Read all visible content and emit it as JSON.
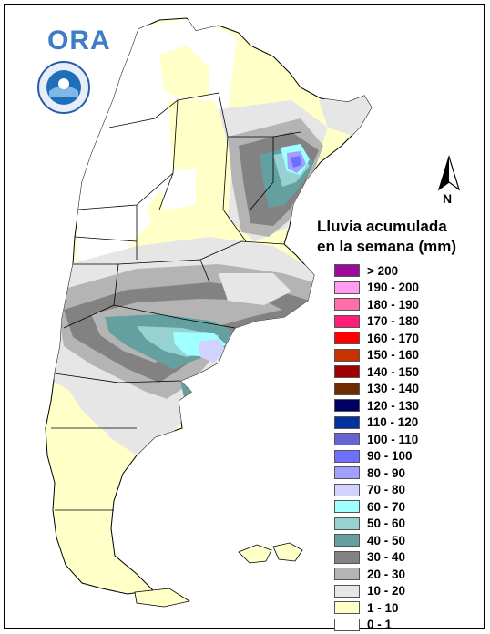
{
  "header": {
    "logo_text": "ORA"
  },
  "compass": {
    "label": "N"
  },
  "legend": {
    "title_line1": "Lluvia acumulada",
    "title_line2": "en la semana (mm)",
    "items": [
      {
        "label": "> 200",
        "color": "#9b0a9b"
      },
      {
        "label": "190 - 200",
        "color": "#ff9cf0"
      },
      {
        "label": "180 - 190",
        "color": "#ff6ea8"
      },
      {
        "label": "170 - 180",
        "color": "#ff1e78"
      },
      {
        "label": "160 - 170",
        "color": "#ff0000"
      },
      {
        "label": "150 - 160",
        "color": "#c83200"
      },
      {
        "label": "140 - 150",
        "color": "#a00000"
      },
      {
        "label": "130 - 140",
        "color": "#6e2d00"
      },
      {
        "label": "120 - 130",
        "color": "#000064"
      },
      {
        "label": "110 - 120",
        "color": "#0032a0"
      },
      {
        "label": "100 - 110",
        "color": "#6464d2"
      },
      {
        "label": "90 - 100",
        "color": "#6e6eff"
      },
      {
        "label": "80 - 90",
        "color": "#a0a0ff"
      },
      {
        "label": "70 - 80",
        "color": "#d2d2ff"
      },
      {
        "label": "60 - 70",
        "color": "#a0ffff"
      },
      {
        "label": "50 - 60",
        "color": "#96d2d2"
      },
      {
        "label": "40 - 50",
        "color": "#64a0a0"
      },
      {
        "label": "30 - 40",
        "color": "#828282"
      },
      {
        "label": "20 - 30",
        "color": "#b4b4b4"
      },
      {
        "label": "10 - 20",
        "color": "#e6e6e6"
      },
      {
        "label": "1 - 10",
        "color": "#ffffc8"
      },
      {
        "label": "0 - 1",
        "color": "#ffffff"
      }
    ]
  }
}
